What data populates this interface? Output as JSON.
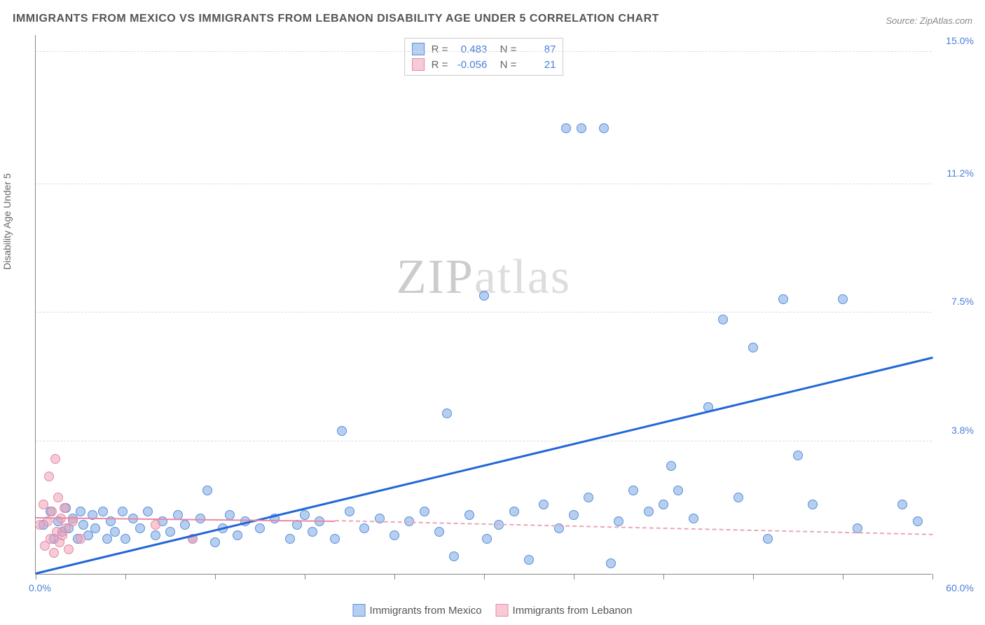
{
  "title": "IMMIGRANTS FROM MEXICO VS IMMIGRANTS FROM LEBANON DISABILITY AGE UNDER 5 CORRELATION CHART",
  "source": "Source: ZipAtlas.com",
  "y_axis_label": "Disability Age Under 5",
  "watermark": {
    "part1": "ZIP",
    "part2": "atlas"
  },
  "chart": {
    "type": "scatter",
    "xlim": [
      0,
      60.0
    ],
    "ylim": [
      0,
      15.5
    ],
    "x_tick_step": 6.0,
    "y_ticks": [
      3.8,
      7.5,
      11.2,
      15.0
    ],
    "y_tick_labels": [
      "3.8%",
      "7.5%",
      "11.2%",
      "15.0%"
    ],
    "x_label_min": "0.0%",
    "x_label_max": "60.0%",
    "background_color": "#ffffff",
    "grid_color": "#dddddd",
    "series": {
      "mexico": {
        "label": "Immigrants from Mexico",
        "color_fill": "rgba(122,168,230,0.55)",
        "color_stroke": "#5a8fd8",
        "R": "0.483",
        "N": "87",
        "regression": {
          "x1": 0,
          "y1": 0.0,
          "x2": 60,
          "y2": 6.2,
          "color": "#2166d8"
        },
        "points": [
          [
            0.5,
            1.4
          ],
          [
            1.0,
            1.8
          ],
          [
            1.2,
            1.0
          ],
          [
            1.5,
            1.5
          ],
          [
            1.8,
            1.2
          ],
          [
            2.0,
            1.9
          ],
          [
            2.2,
            1.3
          ],
          [
            2.5,
            1.6
          ],
          [
            2.8,
            1.0
          ],
          [
            3.0,
            1.8
          ],
          [
            3.2,
            1.4
          ],
          [
            3.5,
            1.1
          ],
          [
            3.8,
            1.7
          ],
          [
            4.0,
            1.3
          ],
          [
            4.5,
            1.8
          ],
          [
            4.8,
            1.0
          ],
          [
            5.0,
            1.5
          ],
          [
            5.3,
            1.2
          ],
          [
            5.8,
            1.8
          ],
          [
            6.0,
            1.0
          ],
          [
            6.5,
            1.6
          ],
          [
            7.0,
            1.3
          ],
          [
            7.5,
            1.8
          ],
          [
            8.0,
            1.1
          ],
          [
            8.5,
            1.5
          ],
          [
            9.0,
            1.2
          ],
          [
            9.5,
            1.7
          ],
          [
            10.0,
            1.4
          ],
          [
            10.5,
            1.0
          ],
          [
            11.0,
            1.6
          ],
          [
            11.5,
            2.4
          ],
          [
            12.0,
            0.9
          ],
          [
            12.5,
            1.3
          ],
          [
            13.0,
            1.7
          ],
          [
            13.5,
            1.1
          ],
          [
            14.0,
            1.5
          ],
          [
            15.0,
            1.3
          ],
          [
            16.0,
            1.6
          ],
          [
            17.0,
            1.0
          ],
          [
            17.5,
            1.4
          ],
          [
            18.0,
            1.7
          ],
          [
            18.5,
            1.2
          ],
          [
            19.0,
            1.5
          ],
          [
            20.0,
            1.0
          ],
          [
            20.5,
            4.1
          ],
          [
            21.0,
            1.8
          ],
          [
            22.0,
            1.3
          ],
          [
            23.0,
            1.6
          ],
          [
            24.0,
            1.1
          ],
          [
            25.0,
            1.5
          ],
          [
            26.0,
            1.8
          ],
          [
            27.0,
            1.2
          ],
          [
            27.5,
            4.6
          ],
          [
            28.0,
            0.5
          ],
          [
            29.0,
            1.7
          ],
          [
            30.0,
            8.0
          ],
          [
            30.2,
            1.0
          ],
          [
            31.0,
            1.4
          ],
          [
            32.0,
            1.8
          ],
          [
            33.0,
            0.4
          ],
          [
            34.0,
            2.0
          ],
          [
            35.0,
            1.3
          ],
          [
            35.5,
            12.8
          ],
          [
            36.0,
            1.7
          ],
          [
            36.5,
            12.8
          ],
          [
            37.0,
            2.2
          ],
          [
            38.0,
            12.8
          ],
          [
            38.5,
            0.3
          ],
          [
            39.0,
            1.5
          ],
          [
            40.0,
            2.4
          ],
          [
            41.0,
            1.8
          ],
          [
            42.0,
            2.0
          ],
          [
            42.5,
            3.1
          ],
          [
            43.0,
            2.4
          ],
          [
            44.0,
            1.6
          ],
          [
            45.0,
            4.8
          ],
          [
            46.0,
            7.3
          ],
          [
            47.0,
            2.2
          ],
          [
            48.0,
            6.5
          ],
          [
            49.0,
            1.0
          ],
          [
            50.0,
            7.9
          ],
          [
            51.0,
            3.4
          ],
          [
            52.0,
            2.0
          ],
          [
            54.0,
            7.9
          ],
          [
            55.0,
            1.3
          ],
          [
            58.0,
            2.0
          ],
          [
            59.0,
            1.5
          ]
        ]
      },
      "lebanon": {
        "label": "Immigrants from Lebanon",
        "color_fill": "rgba(240,160,180,0.55)",
        "color_stroke": "#e888a5",
        "R": "-0.056",
        "N": "21",
        "regression_solid": {
          "x1": 0,
          "y1": 1.6,
          "x2": 20,
          "y2": 1.5,
          "color": "#e888a5"
        },
        "regression_dashed": {
          "x1": 20,
          "y1": 1.5,
          "x2": 60,
          "y2": 1.1,
          "color": "#e8a8b8"
        },
        "points": [
          [
            0.3,
            1.4
          ],
          [
            0.5,
            2.0
          ],
          [
            0.6,
            0.8
          ],
          [
            0.8,
            1.5
          ],
          [
            0.9,
            2.8
          ],
          [
            1.0,
            1.0
          ],
          [
            1.1,
            1.8
          ],
          [
            1.2,
            0.6
          ],
          [
            1.3,
            3.3
          ],
          [
            1.4,
            1.2
          ],
          [
            1.5,
            2.2
          ],
          [
            1.6,
            0.9
          ],
          [
            1.7,
            1.6
          ],
          [
            1.8,
            1.1
          ],
          [
            1.9,
            1.9
          ],
          [
            2.0,
            1.3
          ],
          [
            2.2,
            0.7
          ],
          [
            2.5,
            1.5
          ],
          [
            3.0,
            1.0
          ],
          [
            8.0,
            1.4
          ],
          [
            10.5,
            1.0
          ]
        ]
      }
    }
  }
}
